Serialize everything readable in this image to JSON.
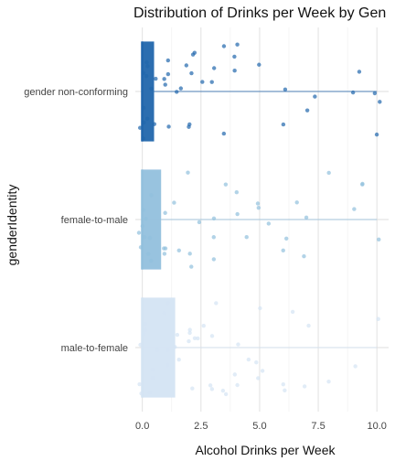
{
  "chart_data": {
    "type": "scatter",
    "subtype": "jittered strip plot with boxplot overlay",
    "title": "Distribution of Drinks per Week by Gen",
    "xlabel": "Alcohol Drinks per Week",
    "ylabel": "genderIdentity",
    "xlim": [
      -0.3,
      10.5
    ],
    "x_ticks": [
      0.0,
      2.5,
      5.0,
      7.5,
      10.0
    ],
    "x_tick_labels": [
      "0.0",
      "2.5",
      "5.0",
      "7.5",
      "10.0"
    ],
    "grid": "on",
    "legend": "none",
    "categories": [
      "gender non-conforming",
      "female-to-male",
      "male-to-female"
    ],
    "series": [
      {
        "category": "gender non-conforming",
        "color": "#2166ac",
        "box": {
          "q1": 0.0,
          "median": 0.0,
          "q3": 0.5,
          "whisker_high": 10.0
        },
        "points_x": [
          0.0,
          0.0,
          0.0,
          0.0,
          0.0,
          0.1,
          0.1,
          0.2,
          0.3,
          0.4,
          0.5,
          0.5,
          1.0,
          1.0,
          1.0,
          1.0,
          1.2,
          1.5,
          1.5,
          1.8,
          2.0,
          2.0,
          2.0,
          2.1,
          2.2,
          2.5,
          3.0,
          3.0,
          3.5,
          3.5,
          4.0,
          4.0,
          4.0,
          5.0,
          6.0,
          6.0,
          7.0,
          7.5,
          9.0,
          9.2,
          10.0,
          10.0,
          10.0
        ]
      },
      {
        "category": "female-to-male",
        "color": "#92c0dd",
        "box": {
          "q1": 0.0,
          "median": 0.0,
          "q3": 0.8,
          "whisker_high": 10.0
        },
        "points_x": [
          0.0,
          0.0,
          0.0,
          0.0,
          0.0,
          0.1,
          0.2,
          0.3,
          0.5,
          0.5,
          1.0,
          1.0,
          1.0,
          1.0,
          1.5,
          1.5,
          2.0,
          2.0,
          2.0,
          2.5,
          3.0,
          3.0,
          3.0,
          3.5,
          4.0,
          4.0,
          4.5,
          5.0,
          5.0,
          5.5,
          6.0,
          6.0,
          6.5,
          7.0,
          7.0,
          8.0,
          9.0,
          9.5,
          9.5,
          10.0
        ]
      },
      {
        "category": "male-to-female",
        "color": "#d4e4f3",
        "box": {
          "q1": 0.0,
          "median": 0.0,
          "q3": 1.4,
          "whisker_high": 10.0
        },
        "points_x": [
          0.0,
          0.0,
          0.0,
          0.0,
          0.0,
          0.2,
          0.3,
          0.5,
          0.5,
          0.7,
          1.0,
          1.0,
          1.0,
          1.0,
          1.5,
          1.5,
          1.5,
          2.0,
          2.0,
          2.0,
          2.0,
          2.2,
          2.5,
          2.5,
          3.0,
          3.0,
          3.0,
          3.0,
          3.5,
          3.5,
          4.0,
          4.0,
          4.0,
          4.5,
          5.0,
          5.0,
          5.0,
          5.0,
          6.0,
          6.0,
          6.5,
          7.0,
          7.0,
          8.0,
          9.0,
          10.0
        ]
      }
    ]
  }
}
